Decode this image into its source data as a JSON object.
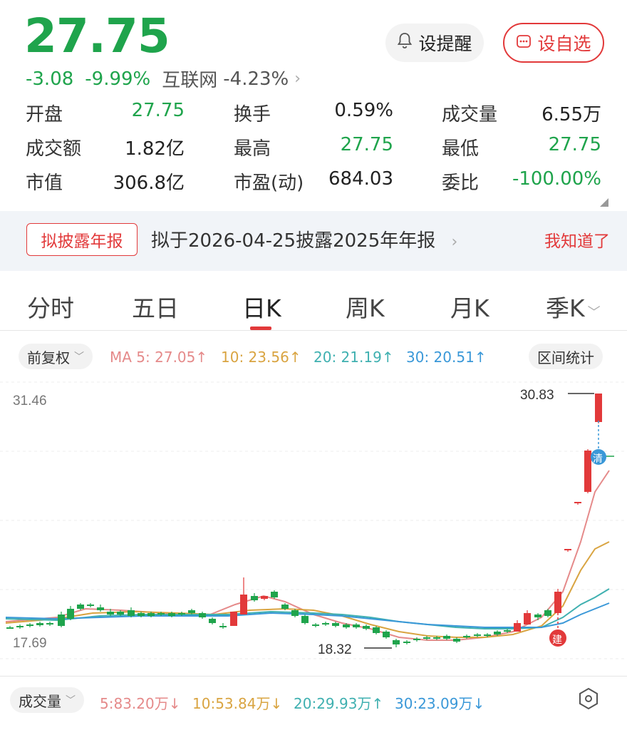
{
  "quote": {
    "price": "27.75",
    "change": "-3.08",
    "change_pct": "-9.99%",
    "sector_name": "互联网",
    "sector_pct": "-4.23%"
  },
  "buttons": {
    "remind_label": "设提醒",
    "fav_label": "设自选"
  },
  "stats": [
    {
      "label": "开盘",
      "value": "27.75",
      "color": "green"
    },
    {
      "label": "换手",
      "value": "0.59%",
      "color": "black"
    },
    {
      "label": "成交量",
      "value": "6.55万",
      "color": "black"
    },
    {
      "label": "成交额",
      "value": "1.82亿",
      "color": "black"
    },
    {
      "label": "最高",
      "value": "27.75",
      "color": "green"
    },
    {
      "label": "最低",
      "value": "27.75",
      "color": "green"
    },
    {
      "label": "市值",
      "value": "306.8亿",
      "color": "black"
    },
    {
      "label": "市盈(动)",
      "value": "684.03",
      "color": "black"
    },
    {
      "label": "委比",
      "value": "-100.00%",
      "color": "green"
    }
  ],
  "notice": {
    "tag": "拟披露年报",
    "text": "拟于2026-04-25披露2025年年报",
    "ack": "我知道了"
  },
  "tabs": [
    "分时",
    "五日",
    "日K",
    "周K",
    "月K",
    "季K"
  ],
  "ma_bar": {
    "adjust_label": "前复权",
    "ma5": "MA 5: 27.05",
    "ma10": "10: 23.56",
    "ma20": "20: 21.19",
    "ma30": "30: 20.51",
    "range_stats": "区间统计"
  },
  "chart_labels": {
    "ymax": "31.46",
    "ymin": "17.69",
    "high_mark": "30.83",
    "low_mark": "18.32",
    "clear_badge": "清",
    "build_badge": "建"
  },
  "volume_bar": {
    "label": "成交量",
    "v5": "5:83.20万",
    "v10": "10:53.84万",
    "v20": "20:29.93万",
    "v30": "30:23.09万"
  },
  "colors": {
    "up": "#e2393a",
    "down": "#1fa44c",
    "ma5": "#e58a8a",
    "ma10": "#d9a441",
    "ma20": "#3fb0b0",
    "ma30": "#3a98d8"
  }
}
